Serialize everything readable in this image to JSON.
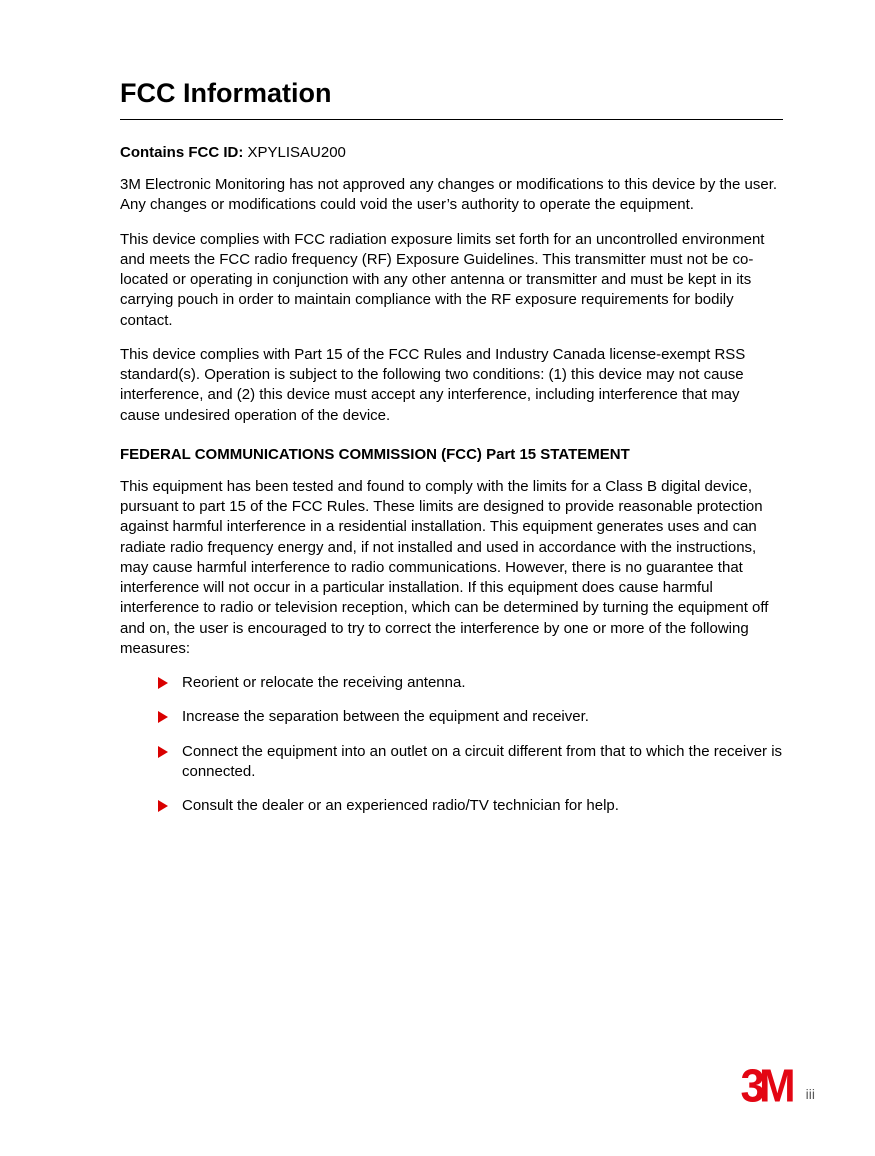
{
  "colors": {
    "text": "#000000",
    "background": "#ffffff",
    "bullet": "#d90000",
    "logo": "#e30613",
    "page_num": "#5a5a5a",
    "rule": "#000000"
  },
  "typography": {
    "body_family": "Verdana, Geneva, sans-serif",
    "title_size_pt": 20,
    "body_size_pt": 11,
    "line_height": 1.35
  },
  "title": "FCC Information",
  "fcc_id": {
    "label": "Contains FCC ID:",
    "value": "XPYLISAU200"
  },
  "paragraphs_top": [
    "3M Electronic Monitoring has not approved any changes or modifications to this device by the user. Any changes or modifications could void the user’s authority to operate the equipment.",
    "This device complies with FCC radiation exposure limits set forth for an uncontrolled environment and meets the FCC radio frequency (RF) Exposure Guidelines. This transmitter must not be co-located or operating in conjunction with any other antenna or transmitter and must be kept in its carrying pouch in order to maintain compliance with the RF exposure requirements for bodily contact.",
    "This device complies with Part 15 of the FCC Rules and Industry Canada license-exempt RSS standard(s). Operation is subject to the following two conditions: (1) this device may not cause interference, and (2) this device must accept any interference, including interference that may cause undesired operation of the device."
  ],
  "subheading": "FEDERAL COMMUNICATIONS COMMISSION (FCC) Part 15 STATEMENT",
  "paragraphs_mid": [
    "This equipment has been tested and found to comply with the limits for a Class B digital device, pursuant to part 15 of the FCC Rules. These limits are designed to provide reasonable protection against harmful interference in a residential installation. This equipment generates uses and can radiate radio frequency energy and, if not installed and used in accordance with the instructions, may cause harmful interference to radio communications. However, there is no guarantee that interference will not occur in a particular installation. If this equipment does cause harmful interference to radio or television reception, which can be determined by turning the equipment off and on, the user is encouraged to try to correct the interference by one or more of the following measures:"
  ],
  "bullets": [
    "Reorient or relocate the receiving antenna.",
    "Increase the separation between the equipment and receiver.",
    "Connect the equipment into an outlet on a circuit different from that to which the receiver is connected.",
    "Consult the dealer or an experienced radio/TV technician for help."
  ],
  "footer": {
    "logo_text": "3M",
    "page_number": "iii"
  }
}
